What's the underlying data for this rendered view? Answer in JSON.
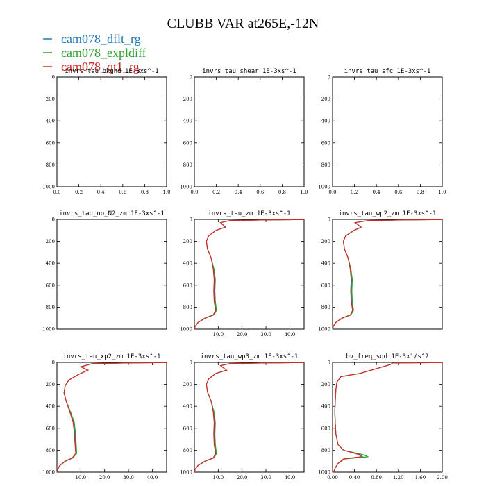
{
  "title": "CLUBB VAR at265E,-12N",
  "legend": [
    {
      "name": "cam078_dflt_rg",
      "color": "#1f77b4"
    },
    {
      "name": "cam078_expldiff",
      "color": "#2ca02c"
    },
    {
      "name": "cam078_qt1_rg",
      "color": "#d62728"
    }
  ],
  "chart_data": [
    {
      "type": "line",
      "title": "invrs_tau_bkgnd",
      "unit": "1E-3xs^-1",
      "xlim": [
        0,
        1
      ],
      "ylim": [
        1000,
        0
      ],
      "xticks": [
        "0.0",
        "0.2",
        "0.4",
        "0.6",
        "0.8",
        "1.0"
      ],
      "xtick_values": [
        0,
        0.2,
        0.4,
        0.6,
        0.8,
        1.0
      ],
      "yticks": [
        "0",
        "200",
        "400",
        "600",
        "800",
        "1000"
      ],
      "ytick_values": [
        0,
        200,
        400,
        600,
        800,
        1000
      ],
      "series": []
    },
    {
      "type": "line",
      "title": "invrs_tau_shear",
      "unit": "1E-3xs^-1",
      "xlim": [
        0,
        1
      ],
      "ylim": [
        1000,
        0
      ],
      "xticks": [
        "0.0",
        "0.2",
        "0.4",
        "0.6",
        "0.8",
        "1.0"
      ],
      "xtick_values": [
        0,
        0.2,
        0.4,
        0.6,
        0.8,
        1.0
      ],
      "yticks": [
        "0",
        "200",
        "400",
        "600",
        "800",
        "1000"
      ],
      "ytick_values": [
        0,
        200,
        400,
        600,
        800,
        1000
      ],
      "series": []
    },
    {
      "type": "line",
      "title": "invrs_tau_sfc",
      "unit": "1E-3xs^-1",
      "xlim": [
        0,
        1
      ],
      "ylim": [
        1000,
        0
      ],
      "xticks": [
        "0.0",
        "0.2",
        "0.4",
        "0.6",
        "0.8",
        "1.0"
      ],
      "xtick_values": [
        0,
        0.2,
        0.4,
        0.6,
        0.8,
        1.0
      ],
      "yticks": [
        "0",
        "200",
        "400",
        "600",
        "800",
        "1000"
      ],
      "ytick_values": [
        0,
        200,
        400,
        600,
        800,
        1000
      ],
      "series": []
    },
    {
      "type": "line",
      "title": "invrs_tau_no_N2_zm",
      "unit": "1E-3xs^-1",
      "xlim": [
        0,
        1
      ],
      "ylim": [
        1000,
        0
      ],
      "xticks": [],
      "xtick_values": [],
      "yticks": [
        "0",
        "200",
        "400",
        "600",
        "800",
        "1000"
      ],
      "ytick_values": [
        0,
        200,
        400,
        600,
        800,
        1000
      ],
      "series": []
    },
    {
      "type": "line",
      "title": "invrs_tau_zm",
      "unit": "1E-3xs^-1",
      "xlim": [
        0,
        46
      ],
      "ylim": [
        1000,
        0
      ],
      "xticks": [
        "10.0",
        "20.0",
        "30.0",
        "40.0"
      ],
      "xtick_values": [
        10,
        20,
        30,
        40
      ],
      "yticks": [
        "0",
        "200",
        "400",
        "600",
        "800",
        "1000"
      ],
      "ytick_values": [
        0,
        200,
        400,
        600,
        800,
        1000
      ],
      "series": [
        {
          "name": "cam078_dflt_rg",
          "x": [
            46,
            30,
            15,
            11,
            13,
            9,
            6,
            5,
            5.5,
            7,
            8,
            8.5,
            8.3,
            8.5,
            9,
            8,
            4.5,
            1.5,
            0.3,
            0.1
          ],
          "y": [
            2,
            5,
            10,
            30,
            70,
            100,
            150,
            200,
            270,
            350,
            450,
            550,
            650,
            750,
            830,
            870,
            900,
            940,
            975,
            1000
          ]
        },
        {
          "name": "cam078_expldiff",
          "x": [
            46,
            30,
            15,
            11,
            13,
            9,
            6,
            5,
            5.5,
            7,
            8.2,
            8.8,
            8.6,
            8.8,
            9.3,
            8.2,
            4.6,
            1.5,
            0.3,
            0.1
          ],
          "y": [
            2,
            5,
            10,
            30,
            70,
            100,
            150,
            200,
            270,
            350,
            450,
            550,
            650,
            750,
            830,
            870,
            900,
            940,
            975,
            1000
          ]
        },
        {
          "name": "cam078_qt1_rg",
          "x": [
            46,
            30,
            15,
            11,
            13,
            9,
            6,
            5,
            5.5,
            7,
            7.9,
            8.3,
            8.1,
            8.3,
            8.9,
            7.9,
            4.4,
            1.5,
            0.3,
            0.1
          ],
          "y": [
            2,
            5,
            10,
            30,
            70,
            100,
            150,
            200,
            270,
            350,
            450,
            550,
            650,
            750,
            830,
            870,
            900,
            940,
            975,
            1000
          ]
        }
      ]
    },
    {
      "type": "line",
      "title": "invrs_tau_wp2_zm",
      "unit": "1E-3xs^-1",
      "xlim": [
        0,
        46
      ],
      "ylim": [
        1000,
        0
      ],
      "xticks": [],
      "xtick_values": [],
      "yticks": [
        "0",
        "200",
        "400",
        "600",
        "800",
        "1000"
      ],
      "ytick_values": [
        0,
        200,
        400,
        600,
        800,
        1000
      ],
      "series": [
        {
          "name": "cam078_dflt_rg",
          "x": [
            46,
            30,
            15,
            9.5,
            12,
            9,
            5.5,
            4.5,
            5,
            6.5,
            7.5,
            8,
            7.8,
            8,
            8.5,
            7.5,
            4,
            1.3,
            0.3,
            0.1
          ],
          "y": [
            2,
            5,
            10,
            30,
            70,
            100,
            150,
            200,
            270,
            350,
            450,
            550,
            650,
            750,
            830,
            870,
            900,
            940,
            975,
            1000
          ]
        },
        {
          "name": "cam078_expldiff",
          "x": [
            46,
            30,
            15,
            9.5,
            12,
            9,
            5.5,
            4.5,
            5,
            6.5,
            7.7,
            8.3,
            8.1,
            8.3,
            8.8,
            7.7,
            4.1,
            1.3,
            0.3,
            0.1
          ],
          "y": [
            2,
            5,
            10,
            30,
            70,
            100,
            150,
            200,
            270,
            350,
            450,
            550,
            650,
            750,
            830,
            870,
            900,
            940,
            975,
            1000
          ]
        },
        {
          "name": "cam078_qt1_rg",
          "x": [
            46,
            30,
            15,
            9.5,
            12,
            9,
            5.5,
            4.5,
            5,
            6.5,
            7.4,
            7.8,
            7.6,
            7.8,
            8.4,
            7.4,
            3.9,
            1.3,
            0.3,
            0.1
          ],
          "y": [
            2,
            5,
            10,
            30,
            70,
            100,
            150,
            200,
            270,
            350,
            450,
            550,
            650,
            750,
            830,
            870,
            900,
            940,
            975,
            1000
          ]
        }
      ]
    },
    {
      "type": "line",
      "title": "invrs_tau_xp2_zm",
      "unit": "1E-3xs^-1",
      "xlim": [
        0,
        46
      ],
      "ylim": [
        1000,
        0
      ],
      "xticks": [
        "10.0",
        "20.0",
        "30.0",
        "40.0"
      ],
      "xtick_values": [
        10,
        20,
        30,
        40
      ],
      "yticks": [
        "0",
        "200",
        "400",
        "600",
        "800",
        "1000"
      ],
      "ytick_values": [
        0,
        200,
        400,
        600,
        800,
        1000
      ],
      "series": [
        {
          "name": "cam078_dflt_rg",
          "x": [
            46,
            30,
            15,
            10,
            13,
            9,
            5,
            3.5,
            3,
            4,
            5.5,
            7,
            7.5,
            7.8,
            8,
            6.5,
            3.5,
            1.2,
            0.3,
            0.1
          ],
          "y": [
            2,
            5,
            10,
            40,
            70,
            110,
            160,
            210,
            280,
            360,
            450,
            550,
            650,
            750,
            830,
            870,
            900,
            940,
            975,
            1000
          ]
        },
        {
          "name": "cam078_expldiff",
          "x": [
            46,
            30,
            15,
            10,
            13,
            9,
            5,
            3.5,
            3,
            4,
            5.7,
            7.3,
            7.8,
            8.1,
            8.3,
            6.7,
            3.6,
            1.2,
            0.3,
            0.1
          ],
          "y": [
            2,
            5,
            10,
            40,
            70,
            110,
            160,
            210,
            280,
            360,
            450,
            550,
            650,
            750,
            830,
            870,
            900,
            940,
            975,
            1000
          ]
        },
        {
          "name": "cam078_qt1_rg",
          "x": [
            46,
            30,
            15,
            10,
            13,
            9,
            5,
            3.5,
            3,
            4,
            5.4,
            6.8,
            7.3,
            7.6,
            7.9,
            6.4,
            3.4,
            1.2,
            0.3,
            0.1
          ],
          "y": [
            2,
            5,
            10,
            40,
            70,
            110,
            160,
            210,
            280,
            360,
            450,
            550,
            650,
            750,
            830,
            870,
            900,
            940,
            975,
            1000
          ]
        }
      ]
    },
    {
      "type": "line",
      "title": "invrs_tau_wp3_zm",
      "unit": "1E-3xs^-1",
      "xlim": [
        0,
        46
      ],
      "ylim": [
        1000,
        0
      ],
      "xticks": [
        "10.0",
        "20.0",
        "30.0",
        "40.0"
      ],
      "xtick_values": [
        10,
        20,
        30,
        40
      ],
      "yticks": [
        "0",
        "200",
        "400",
        "600",
        "800",
        "1000"
      ],
      "ytick_values": [
        0,
        200,
        400,
        600,
        800,
        1000
      ],
      "series": [
        {
          "name": "cam078_dflt_rg",
          "x": [
            46,
            30,
            15,
            11,
            13.5,
            9,
            6,
            5,
            5.5,
            7,
            8,
            8.5,
            8.3,
            8.5,
            9,
            8,
            4.5,
            1.5,
            0.3,
            0.1
          ],
          "y": [
            2,
            5,
            10,
            30,
            70,
            100,
            150,
            200,
            270,
            350,
            450,
            550,
            650,
            750,
            830,
            870,
            900,
            940,
            975,
            1000
          ]
        },
        {
          "name": "cam078_expldiff",
          "x": [
            46,
            30,
            15,
            11,
            13.5,
            9,
            6,
            5,
            5.5,
            7,
            8.2,
            8.8,
            8.6,
            8.8,
            9.3,
            8.2,
            4.6,
            1.5,
            0.3,
            0.1
          ],
          "y": [
            2,
            5,
            10,
            30,
            70,
            100,
            150,
            200,
            270,
            350,
            450,
            550,
            650,
            750,
            830,
            870,
            900,
            940,
            975,
            1000
          ]
        },
        {
          "name": "cam078_qt1_rg",
          "x": [
            46,
            30,
            15,
            11,
            13.5,
            9,
            6,
            5,
            5.5,
            7,
            7.9,
            8.3,
            8.1,
            8.3,
            8.9,
            7.9,
            4.4,
            1.5,
            0.3,
            0.1
          ],
          "y": [
            2,
            5,
            10,
            30,
            70,
            100,
            150,
            200,
            270,
            350,
            450,
            550,
            650,
            750,
            830,
            870,
            900,
            940,
            975,
            1000
          ]
        }
      ]
    },
    {
      "type": "line",
      "title": "bv_freq_sqd",
      "unit": "1E-3x1/s^2",
      "xlim": [
        0,
        2
      ],
      "ylim": [
        1000,
        0
      ],
      "xticks": [
        "0.00",
        "0.40",
        "0.80",
        "1.20",
        "1.60",
        "2.00"
      ],
      "xtick_values": [
        0,
        0.4,
        0.8,
        1.2,
        1.6,
        2.0
      ],
      "yticks": [
        "0",
        "200",
        "400",
        "600",
        "800",
        "1000"
      ],
      "ytick_values": [
        0,
        200,
        400,
        600,
        800,
        1000
      ],
      "series": [
        {
          "name": "cam078_dflt_rg",
          "x": [
            2.0,
            1.1,
            1.05,
            0.5,
            0.15,
            0.08,
            0.06,
            0.05,
            0.04,
            0.05,
            0.06,
            0.1,
            0.2,
            0.5,
            0.55,
            0.2,
            0.1,
            0.05,
            0.02
          ],
          "y": [
            2,
            5,
            20,
            100,
            130,
            180,
            250,
            350,
            450,
            550,
            650,
            750,
            800,
            840,
            860,
            880,
            920,
            960,
            1000
          ]
        },
        {
          "name": "cam078_expldiff",
          "x": [
            2.0,
            1.1,
            1.05,
            0.5,
            0.15,
            0.08,
            0.06,
            0.05,
            0.04,
            0.05,
            0.06,
            0.1,
            0.2,
            0.55,
            0.65,
            0.22,
            0.1,
            0.05,
            0.02
          ],
          "y": [
            2,
            5,
            20,
            100,
            130,
            180,
            250,
            350,
            450,
            550,
            650,
            750,
            800,
            840,
            860,
            880,
            920,
            960,
            1000
          ]
        },
        {
          "name": "cam078_qt1_rg",
          "x": [
            2.0,
            1.1,
            1.05,
            0.5,
            0.15,
            0.08,
            0.06,
            0.05,
            0.04,
            0.05,
            0.06,
            0.1,
            0.2,
            0.48,
            0.52,
            0.2,
            0.1,
            0.05,
            0.02
          ],
          "y": [
            2,
            5,
            20,
            100,
            130,
            180,
            250,
            350,
            450,
            550,
            650,
            750,
            800,
            840,
            860,
            880,
            920,
            960,
            1000
          ]
        }
      ]
    }
  ]
}
